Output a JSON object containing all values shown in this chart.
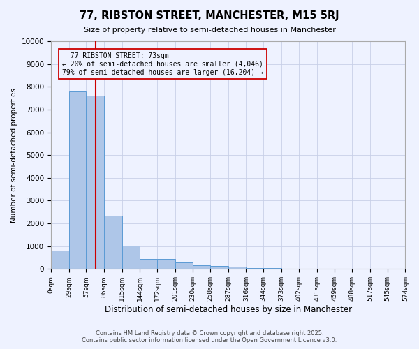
{
  "title": "77, RIBSTON STREET, MANCHESTER, M15 5RJ",
  "subtitle": "Size of property relative to semi-detached houses in Manchester",
  "xlabel": "Distribution of semi-detached houses by size in Manchester",
  "ylabel": "Number of semi-detached properties",
  "property_label": "77 RIBSTON STREET: 73sqm",
  "smaller_pct": "← 20% of semi-detached houses are smaller (4,046)",
  "larger_pct": "79% of semi-detached houses are larger (16,204) →",
  "property_sqm": 73,
  "bin_edges": [
    0,
    29,
    57,
    86,
    115,
    144,
    172,
    201,
    230,
    258,
    287,
    316,
    344,
    373,
    402,
    431,
    459,
    488,
    517,
    545,
    574
  ],
  "bin_labels": [
    "0sqm",
    "29sqm",
    "57sqm",
    "86sqm",
    "115sqm",
    "144sqm",
    "172sqm",
    "201sqm",
    "230sqm",
    "258sqm",
    "287sqm",
    "316sqm",
    "344sqm",
    "373sqm",
    "402sqm",
    "431sqm",
    "459sqm",
    "488sqm",
    "517sqm",
    "545sqm",
    "574sqm"
  ],
  "bar_heights": [
    800,
    7800,
    7600,
    2350,
    1020,
    450,
    430,
    275,
    175,
    125,
    90,
    55,
    35,
    20,
    10,
    8,
    5,
    3,
    2,
    1
  ],
  "bar_color": "#aec6e8",
  "bar_edge_color": "#5b9bd5",
  "line_color": "#cc0000",
  "annotation_box_edge_color": "#cc0000",
  "bg_color": "#eef2ff",
  "grid_color": "#c8d0e8",
  "ylim": [
    0,
    10000
  ],
  "yticks": [
    0,
    1000,
    2000,
    3000,
    4000,
    5000,
    6000,
    7000,
    8000,
    9000,
    10000
  ],
  "footer1": "Contains HM Land Registry data © Crown copyright and database right 2025.",
  "footer2": "Contains public sector information licensed under the Open Government Licence v3.0."
}
